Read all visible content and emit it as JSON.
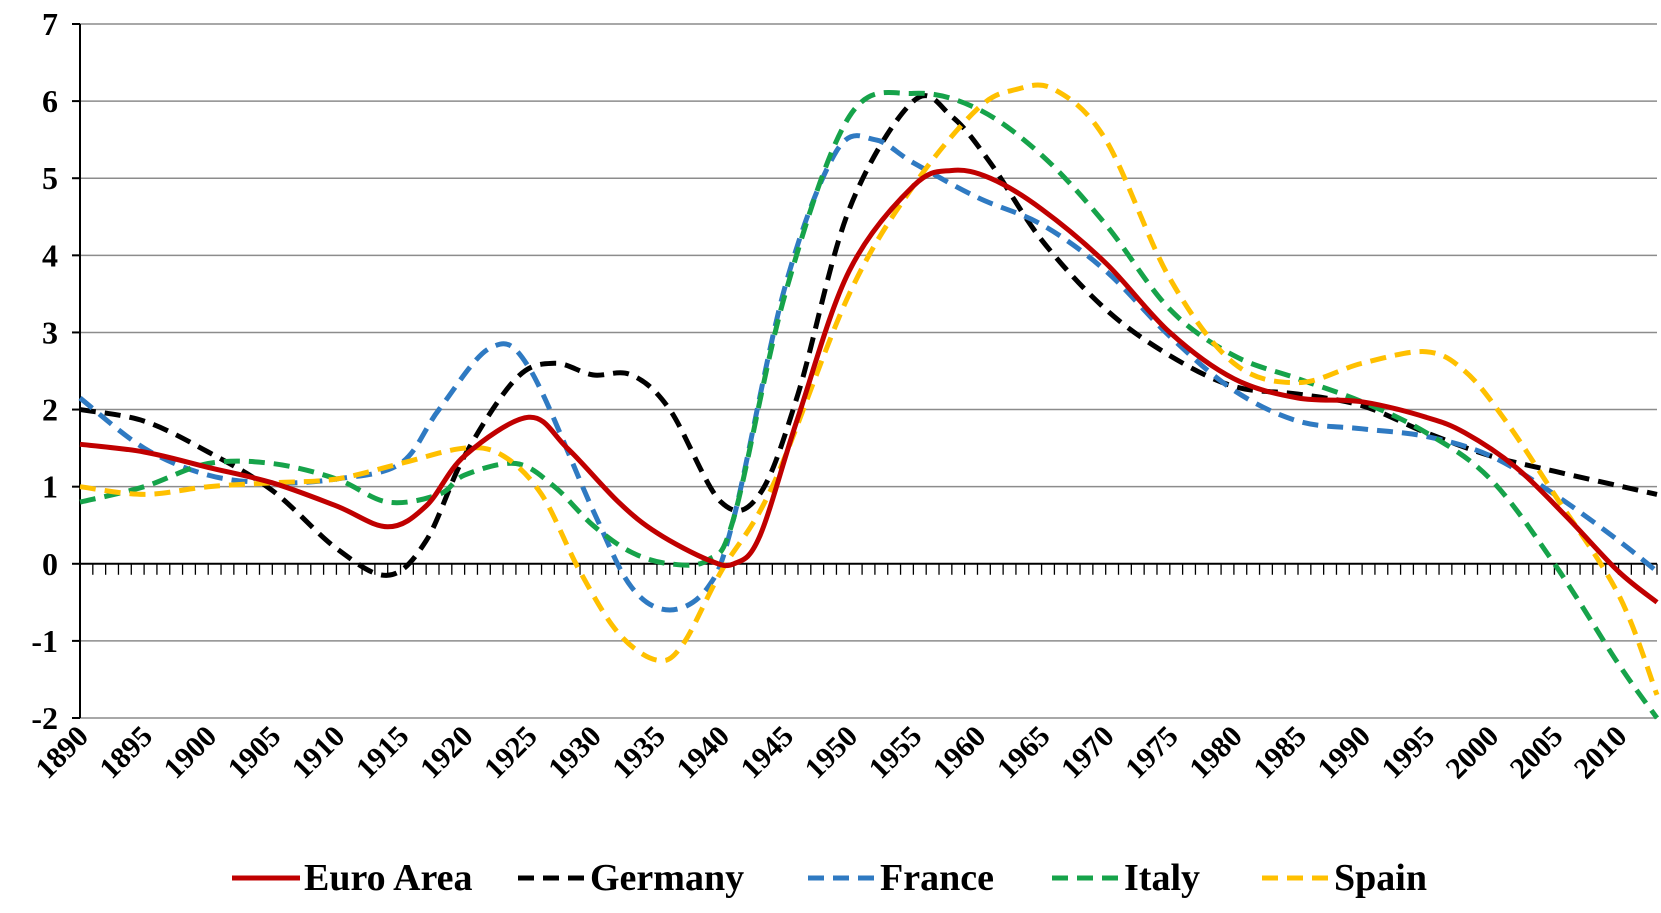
{
  "chart_data": {
    "type": "line",
    "title": "",
    "xlabel": "",
    "ylabel": "",
    "ylim": [
      -2,
      7
    ],
    "yticks": [
      -2,
      -1,
      0,
      1,
      2,
      3,
      4,
      5,
      6,
      7
    ],
    "xlim": [
      1890,
      2013
    ],
    "xtick_labels": [
      "1890",
      "1895",
      "1900",
      "1905",
      "1910",
      "1915",
      "1920",
      "1925",
      "1930",
      "1935",
      "1940",
      "1945",
      "1950",
      "1955",
      "1960",
      "1965",
      "1970",
      "1975",
      "1980",
      "1985",
      "1990",
      "1995",
      "2000",
      "2005",
      "2010"
    ],
    "grid": "horizontal",
    "legend_position": "bottom",
    "series": [
      {
        "name": "Euro Area",
        "color": "#C00000",
        "dash": "solid",
        "x": [
          1890,
          1895,
          1900,
          1905,
          1910,
          1914,
          1917,
          1920,
          1925,
          1928,
          1932,
          1935,
          1939,
          1941,
          1943,
          1946,
          1950,
          1955,
          1958,
          1961,
          1965,
          1970,
          1975,
          1980,
          1985,
          1990,
          1995,
          1998,
          2002,
          2006,
          2010,
          2013
        ],
        "y": [
          1.55,
          1.45,
          1.25,
          1.05,
          0.75,
          0.48,
          0.75,
          1.4,
          1.9,
          1.5,
          0.8,
          0.4,
          0.05,
          0.0,
          0.35,
          1.9,
          3.8,
          4.9,
          5.1,
          5.0,
          4.6,
          3.9,
          3.0,
          2.4,
          2.15,
          2.1,
          1.9,
          1.7,
          1.25,
          0.6,
          -0.1,
          -0.5
        ]
      },
      {
        "name": "Germany",
        "color": "#000000",
        "dash": "dashed",
        "x": [
          1890,
          1895,
          1900,
          1905,
          1910,
          1914,
          1917,
          1920,
          1924,
          1927,
          1930,
          1933,
          1936,
          1940,
          1943,
          1946,
          1950,
          1955,
          1958,
          1961,
          1965,
          1970,
          1975,
          1980,
          1985,
          1990,
          1995,
          2000,
          2005,
          2013
        ],
        "y": [
          2.0,
          1.85,
          1.45,
          0.95,
          0.2,
          -0.15,
          0.3,
          1.4,
          2.4,
          2.6,
          2.45,
          2.45,
          2.0,
          0.8,
          0.9,
          2.2,
          4.6,
          6.0,
          5.8,
          5.2,
          4.2,
          3.3,
          2.7,
          2.3,
          2.2,
          2.05,
          1.7,
          1.4,
          1.2,
          0.9
        ]
      },
      {
        "name": "France",
        "color": "#2F7AC2",
        "dash": "dashed",
        "x": [
          1890,
          1895,
          1900,
          1905,
          1910,
          1915,
          1918,
          1922,
          1925,
          1930,
          1933,
          1936,
          1939,
          1941,
          1945,
          1949,
          1952,
          1955,
          1960,
          1965,
          1970,
          1975,
          1980,
          1985,
          1990,
          1995,
          2000,
          2005,
          2010,
          2013
        ],
        "y": [
          2.15,
          1.5,
          1.15,
          1.05,
          1.1,
          1.3,
          2.0,
          2.8,
          2.55,
          0.7,
          -0.3,
          -0.6,
          -0.3,
          0.6,
          3.6,
          5.35,
          5.5,
          5.2,
          4.75,
          4.4,
          3.8,
          2.95,
          2.25,
          1.85,
          1.75,
          1.65,
          1.4,
          0.9,
          0.3,
          -0.1
        ]
      },
      {
        "name": "Italy",
        "color": "#16A34A",
        "dash": "dashed",
        "x": [
          1890,
          1895,
          1900,
          1905,
          1910,
          1914,
          1918,
          1920,
          1924,
          1927,
          1930,
          1933,
          1936,
          1939,
          1941,
          1945,
          1950,
          1955,
          1960,
          1965,
          1970,
          1975,
          1980,
          1985,
          1990,
          1995,
          2000,
          2005,
          2010,
          2013
        ],
        "y": [
          0.8,
          1.0,
          1.3,
          1.3,
          1.1,
          0.8,
          0.9,
          1.15,
          1.3,
          1.0,
          0.5,
          0.15,
          0.0,
          0.05,
          0.6,
          3.5,
          5.8,
          6.1,
          5.9,
          5.3,
          4.4,
          3.3,
          2.7,
          2.4,
          2.1,
          1.7,
          1.1,
          0.0,
          -1.3,
          -2.0
        ]
      },
      {
        "name": "Spain",
        "color": "#FFC000",
        "dash": "dashed",
        "x": [
          1890,
          1895,
          1900,
          1905,
          1910,
          1915,
          1920,
          1923,
          1926,
          1929,
          1932,
          1935,
          1937,
          1940,
          1944,
          1950,
          1955,
          1960,
          1963,
          1966,
          1970,
          1975,
          1980,
          1985,
          1990,
          1995,
          1998,
          2001,
          2005,
          2010,
          2013
        ],
        "y": [
          1.0,
          0.9,
          1.0,
          1.05,
          1.1,
          1.3,
          1.5,
          1.4,
          0.9,
          -0.1,
          -0.9,
          -1.25,
          -1.05,
          -0.1,
          1.0,
          3.5,
          4.9,
          5.9,
          6.15,
          6.15,
          5.5,
          3.7,
          2.6,
          2.35,
          2.6,
          2.75,
          2.5,
          1.9,
          0.9,
          -0.4,
          -1.7
        ]
      }
    ]
  }
}
